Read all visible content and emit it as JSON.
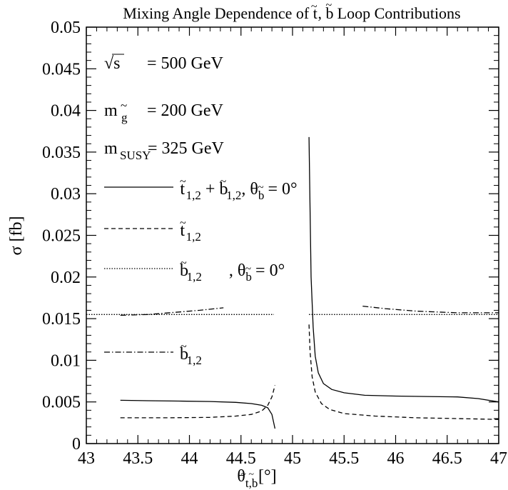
{
  "chart_data": {
    "type": "line",
    "title": "Mixing Angle Dependence of t̃, b̃ Loop Contributions",
    "xlabel": "θt̃,b̃ [°]",
    "ylabel": "σ [fb]",
    "xlim": [
      43,
      47
    ],
    "ylim": [
      0,
      0.05
    ],
    "x_ticks": [
      "43",
      "43.5",
      "44",
      "44.5",
      "45",
      "45.5",
      "46",
      "46.5",
      "47"
    ],
    "y_ticks": [
      "0",
      "0.005",
      "0.01",
      "0.015",
      "0.02",
      "0.025",
      "0.03",
      "0.035",
      "0.04",
      "0.045",
      "0.05"
    ],
    "params": [
      {
        "symbol": "√s",
        "value": "= 500 GeV"
      },
      {
        "symbol": "m",
        "sub": "g̃",
        "value": "= 200 GeV"
      },
      {
        "symbol": "m",
        "sub": "SUSY",
        "value": "= 325 GeV"
      }
    ],
    "legend": [
      {
        "text": "t̃1,2 + b̃1,2, θb̃ = 0°",
        "style": "solid"
      },
      {
        "text": "t̃1,2",
        "style": "dashed"
      },
      {
        "text": "b̃1,2        , θb̃ = 0°",
        "style": "dotted"
      },
      {
        "text": "b̃1,2",
        "style": "dashdot"
      }
    ],
    "series": [
      {
        "style": "solid",
        "segments": [
          [
            [
              43.33,
              0.0052
            ],
            [
              43.6,
              0.00515
            ],
            [
              43.9,
              0.0051
            ],
            [
              44.2,
              0.00505
            ],
            [
              44.45,
              0.00495
            ],
            [
              44.6,
              0.0048
            ],
            [
              44.7,
              0.0046
            ],
            [
              44.76,
              0.0043
            ],
            [
              44.8,
              0.0035
            ],
            [
              44.83,
              0.0018
            ]
          ],
          [
            [
              45.16,
              0.0368
            ],
            [
              45.17,
              0.028
            ],
            [
              45.18,
              0.02
            ],
            [
              45.2,
              0.014
            ],
            [
              45.22,
              0.0105
            ],
            [
              45.25,
              0.0085
            ],
            [
              45.3,
              0.0072
            ],
            [
              45.38,
              0.0065
            ],
            [
              45.5,
              0.0061
            ],
            [
              45.7,
              0.0058
            ],
            [
              46.0,
              0.0057
            ],
            [
              46.3,
              0.00565
            ],
            [
              46.6,
              0.0056
            ],
            [
              46.8,
              0.0054
            ],
            [
              47.0,
              0.005
            ]
          ]
        ]
      },
      {
        "style": "dashed",
        "segments": [
          [
            [
              43.33,
              0.0031
            ],
            [
              43.8,
              0.0031
            ],
            [
              44.2,
              0.00315
            ],
            [
              44.45,
              0.0033
            ],
            [
              44.6,
              0.0035
            ],
            [
              44.7,
              0.0039
            ],
            [
              44.76,
              0.0046
            ],
            [
              44.8,
              0.0056
            ],
            [
              44.83,
              0.007
            ]
          ],
          [
            [
              45.16,
              0.0143
            ],
            [
              45.17,
              0.011
            ],
            [
              45.19,
              0.008
            ],
            [
              45.22,
              0.0062
            ],
            [
              45.28,
              0.0048
            ],
            [
              45.36,
              0.0041
            ],
            [
              45.5,
              0.0036
            ],
            [
              45.8,
              0.0033
            ],
            [
              46.2,
              0.0031
            ],
            [
              46.6,
              0.003
            ],
            [
              47.0,
              0.0029
            ]
          ]
        ]
      },
      {
        "style": "dotted",
        "segments": [
          [
            [
              43.0,
              0.0155
            ],
            [
              44.82,
              0.0155
            ]
          ],
          [
            [
              45.16,
              0.0155
            ],
            [
              47.0,
              0.0155
            ]
          ]
        ]
      },
      {
        "style": "dashdot",
        "segments": [
          [
            [
              43.33,
              0.0154
            ],
            [
              43.6,
              0.0155
            ],
            [
              43.9,
              0.0158
            ],
            [
              44.1,
              0.016
            ],
            [
              44.33,
              0.0163
            ]
          ],
          [
            [
              45.68,
              0.0165
            ],
            [
              45.9,
              0.0162
            ],
            [
              46.2,
              0.0159
            ],
            [
              46.6,
              0.0157
            ],
            [
              47.0,
              0.0157
            ]
          ]
        ]
      }
    ]
  }
}
